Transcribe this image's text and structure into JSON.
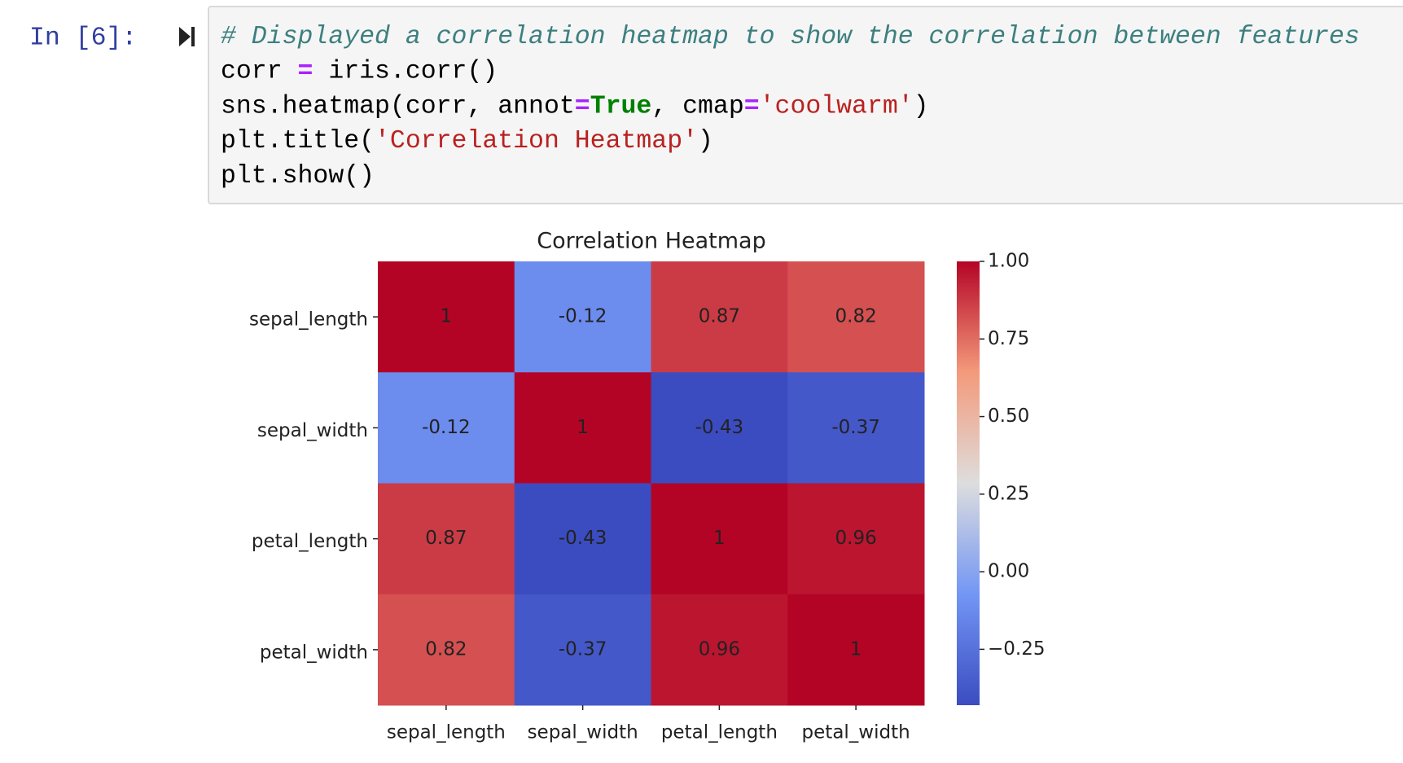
{
  "cell": {
    "prompt": "In [6]:",
    "code": [
      [
        {
          "text": "# Displayed a correlation heatmap to show the correlation between features",
          "color": "#3d7f7f",
          "italic": true
        }
      ],
      [
        {
          "text": "corr ",
          "color": "#000000"
        },
        {
          "text": "=",
          "color": "#aa22ff",
          "bold": true
        },
        {
          "text": " iris.corr()",
          "color": "#000000"
        }
      ],
      [
        {
          "text": "sns.heatmap(corr, annot",
          "color": "#000000"
        },
        {
          "text": "=",
          "color": "#aa22ff",
          "bold": true
        },
        {
          "text": "True",
          "color": "#008000",
          "bold": true
        },
        {
          "text": ", cmap",
          "color": "#000000"
        },
        {
          "text": "=",
          "color": "#aa22ff",
          "bold": true
        },
        {
          "text": "'coolwarm'",
          "color": "#ba2121"
        },
        {
          "text": ")",
          "color": "#000000"
        }
      ],
      [
        {
          "text": "plt.title(",
          "color": "#000000"
        },
        {
          "text": "'Correlation Heatmap'",
          "color": "#ba2121"
        },
        {
          "text": ")",
          "color": "#000000"
        }
      ],
      [
        {
          "text": "plt.show()",
          "color": "#000000"
        }
      ]
    ]
  },
  "chart_data": {
    "type": "heatmap",
    "title": "Correlation Heatmap",
    "x_categories": [
      "sepal_length",
      "sepal_width",
      "petal_length",
      "petal_width"
    ],
    "y_categories": [
      "sepal_length",
      "sepal_width",
      "petal_length",
      "petal_width"
    ],
    "values": [
      [
        1,
        -0.12,
        0.87,
        0.82
      ],
      [
        -0.12,
        1,
        -0.43,
        -0.37
      ],
      [
        0.87,
        -0.43,
        1,
        0.96
      ],
      [
        0.82,
        -0.37,
        0.96,
        1
      ]
    ],
    "cmap": "coolwarm",
    "zlim": [
      -0.43,
      1
    ],
    "zticks": [
      {
        "value": 1,
        "label": "1.00"
      },
      {
        "value": 0.75,
        "label": "0.75"
      },
      {
        "value": 0.5,
        "label": "0.50"
      },
      {
        "value": 0.25,
        "label": "0.25"
      },
      {
        "value": 0,
        "label": "0.00"
      },
      {
        "value": -0.25,
        "label": "−0.25"
      }
    ]
  }
}
